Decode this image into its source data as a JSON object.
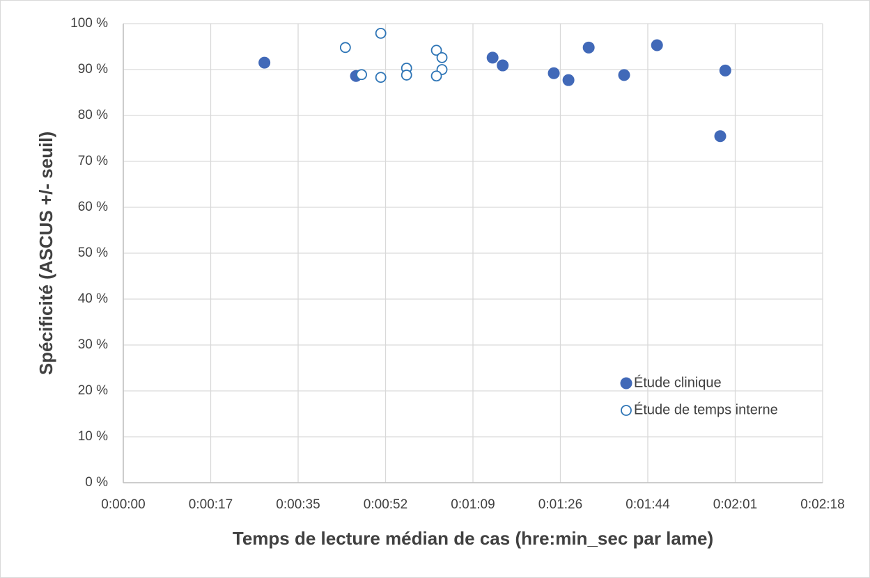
{
  "chart_data": {
    "type": "scatter",
    "x_label": "Temps de lecture médian de cas (hre:min_sec par lame)",
    "y_label": "Spécificité (ASCUS +/- seuil)",
    "xlim": [
      0,
      138.24
    ],
    "xticks": [
      {
        "value": 0,
        "label": "0:00:00"
      },
      {
        "value": 17.28,
        "label": "0:00:17"
      },
      {
        "value": 34.56,
        "label": "0:00:35"
      },
      {
        "value": 51.84,
        "label": "0:00:52"
      },
      {
        "value": 69.12,
        "label": "0:01:09"
      },
      {
        "value": 86.4,
        "label": "0:01:26"
      },
      {
        "value": 103.68,
        "label": "0:01:44"
      },
      {
        "value": 120.96,
        "label": "0:02:01"
      },
      {
        "value": 138.24,
        "label": "0:02:18"
      }
    ],
    "ylim": [
      0,
      100
    ],
    "yticks": [
      {
        "value": 0,
        "label": "0 %"
      },
      {
        "value": 10,
        "label": "10 %"
      },
      {
        "value": 20,
        "label": "20 %"
      },
      {
        "value": 30,
        "label": "30 %"
      },
      {
        "value": 40,
        "label": "40 %"
      },
      {
        "value": 50,
        "label": "50 %"
      },
      {
        "value": 60,
        "label": "60 %"
      },
      {
        "value": 70,
        "label": "70 %"
      },
      {
        "value": 80,
        "label": "80 %"
      },
      {
        "value": 90,
        "label": "90 %"
      },
      {
        "value": 100,
        "label": "100 %"
      }
    ],
    "grid": true,
    "legend": "lower right",
    "series": [
      {
        "name": "Étude clinique",
        "color": "#4169b8",
        "marker": "filled",
        "x": [
          27.9,
          46.0,
          73.0,
          75.0,
          85.1,
          88.0,
          92.0,
          99.0,
          105.5,
          118.0,
          119.0
        ],
        "values": [
          91.5,
          88.6,
          92.6,
          90.9,
          89.2,
          87.7,
          94.8,
          88.8,
          95.3,
          75.5,
          89.8
        ]
      },
      {
        "name": "Étude de temps interne",
        "color": "#2e75b6",
        "marker": "open",
        "x": [
          43.9,
          47.1,
          50.9,
          50.9,
          56.0,
          56.0,
          61.9,
          63.0,
          63.0,
          61.9
        ],
        "values": [
          94.8,
          88.9,
          97.9,
          88.3,
          90.3,
          88.8,
          94.2,
          92.6,
          90.0,
          88.6
        ]
      }
    ]
  }
}
